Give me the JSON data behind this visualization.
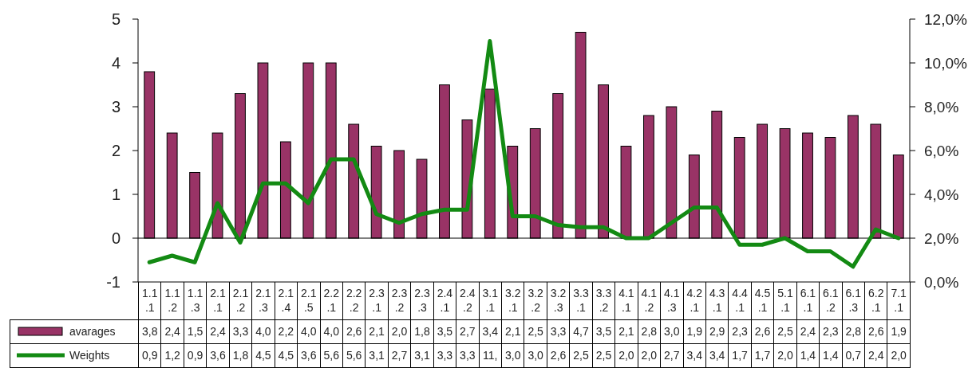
{
  "chart_data": {
    "type": "bar",
    "categories": [
      "1.1.1",
      "1.1.2",
      "1.1.3",
      "2.1.1",
      "2.1.2",
      "2.1.3",
      "2.1.4",
      "2.1.5",
      "2.2.1",
      "2.2.2",
      "2.3.1",
      "2.3.2",
      "2.3.3",
      "2.4.1",
      "2.4.2",
      "3.1.1",
      "3.2.1",
      "3.2.2",
      "3.2.3",
      "3.3.1",
      "3.3.2",
      "4.1.1",
      "4.1.2",
      "4.1.3",
      "4.2.1",
      "4.3.1",
      "4.4.1",
      "4.5.1",
      "5.1.1",
      "6.1.1",
      "6.1.2",
      "6.1.3",
      "6.2.1",
      "7.1.1"
    ],
    "series": [
      {
        "name": "avarages",
        "type": "bar",
        "color": "#993366",
        "values": [
          3.8,
          2.4,
          1.5,
          2.4,
          3.3,
          4.0,
          2.2,
          4.0,
          4.0,
          2.6,
          2.1,
          2.0,
          1.8,
          3.5,
          2.7,
          3.4,
          2.1,
          2.5,
          3.3,
          4.7,
          3.5,
          2.1,
          2.8,
          3.0,
          1.9,
          2.9,
          2.3,
          2.6,
          2.5,
          2.4,
          2.3,
          2.8,
          2.6,
          1.9
        ],
        "value_labels": [
          "3,8",
          "2,4",
          "1,5",
          "2,4",
          "3,3",
          "4,0",
          "2,2",
          "4,0",
          "4,0",
          "2,6",
          "2,1",
          "2,0",
          "1,8",
          "3,5",
          "2,7",
          "3,4",
          "2,1",
          "2,5",
          "3,3",
          "4,7",
          "3,5",
          "2,1",
          "2,8",
          "3,0",
          "1,9",
          "2,9",
          "2,3",
          "2,6",
          "2,5",
          "2,4",
          "2,3",
          "2,8",
          "2,6",
          "1,9"
        ]
      },
      {
        "name": "Weights",
        "type": "line",
        "axis": "y2",
        "color": "#138a13",
        "values": [
          0.9,
          1.2,
          0.9,
          3.6,
          1.8,
          4.5,
          4.5,
          3.6,
          5.6,
          5.6,
          3.1,
          2.7,
          3.1,
          3.3,
          3.3,
          11,
          3.0,
          3.0,
          2.6,
          2.5,
          2.5,
          2.0,
          2.0,
          2.7,
          3.4,
          3.4,
          1.7,
          1.7,
          2.0,
          1.4,
          1.4,
          0.7,
          2.4,
          2.0
        ],
        "value_labels": [
          "0,9",
          "1,2",
          "0,9",
          "3,6",
          "1,8",
          "4,5",
          "4,5",
          "3,6",
          "5,6",
          "5,6",
          "3,1",
          "2,7",
          "3,1",
          "3,3",
          "3,3",
          "11,",
          "3,0",
          "3,0",
          "2,6",
          "2,5",
          "2,5",
          "2,0",
          "2,0",
          "2,7",
          "3,4",
          "3,4",
          "1,7",
          "1,7",
          "2,0",
          "1,4",
          "1,4",
          "0,7",
          "2,4",
          "2,0"
        ]
      }
    ],
    "ylim": [
      -1,
      5
    ],
    "yticks": [
      -1,
      0,
      1,
      2,
      3,
      4,
      5
    ],
    "y2lim": [
      0,
      12
    ],
    "y2ticks": [
      {
        "value": 0,
        "label": "0,0%"
      },
      {
        "value": 2,
        "label": "2,0%"
      },
      {
        "value": 4,
        "label": "4,0%"
      },
      {
        "value": 6,
        "label": "6,0%"
      },
      {
        "value": 8,
        "label": "8,0%"
      },
      {
        "value": 10,
        "label": "10,0%"
      },
      {
        "value": 12,
        "label": "12,0%"
      }
    ],
    "ref_lines": [
      {
        "axis": "y",
        "value": 0,
        "color": "#000000"
      }
    ],
    "grid": false,
    "legend": "bottom left",
    "marker": "none",
    "line_style": "solid"
  }
}
